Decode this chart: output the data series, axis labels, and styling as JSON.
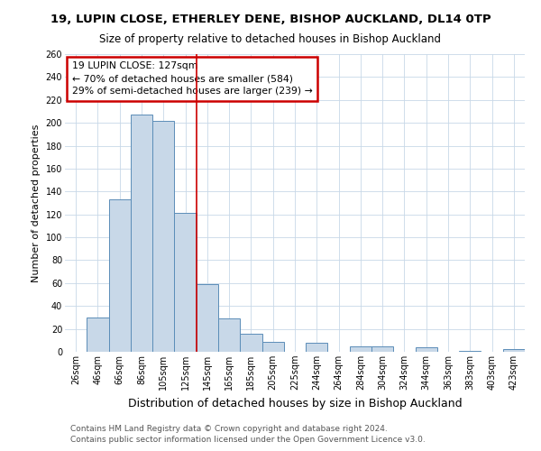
{
  "title": "19, LUPIN CLOSE, ETHERLEY DENE, BISHOP AUCKLAND, DL14 0TP",
  "subtitle": "Size of property relative to detached houses in Bishop Auckland",
  "xlabel": "Distribution of detached houses by size in Bishop Auckland",
  "ylabel": "Number of detached properties",
  "bin_labels": [
    "26sqm",
    "46sqm",
    "66sqm",
    "86sqm",
    "105sqm",
    "125sqm",
    "145sqm",
    "165sqm",
    "185sqm",
    "205sqm",
    "225sqm",
    "244sqm",
    "264sqm",
    "284sqm",
    "304sqm",
    "324sqm",
    "344sqm",
    "363sqm",
    "383sqm",
    "403sqm",
    "423sqm"
  ],
  "bar_heights": [
    0,
    30,
    133,
    207,
    202,
    121,
    59,
    29,
    16,
    9,
    0,
    8,
    0,
    5,
    5,
    0,
    4,
    0,
    1,
    0,
    2
  ],
  "bar_color": "#c8d8e8",
  "bar_edge_color": "#5b8db8",
  "vline_x_idx": 5,
  "vline_color": "#cc0000",
  "annotation_title": "19 LUPIN CLOSE: 127sqm",
  "annotation_line1": "← 70% of detached houses are smaller (584)",
  "annotation_line2": "29% of semi-detached houses are larger (239) →",
  "annotation_box_color": "#cc0000",
  "ylim": [
    0,
    260
  ],
  "yticks": [
    0,
    20,
    40,
    60,
    80,
    100,
    120,
    140,
    160,
    180,
    200,
    220,
    240,
    260
  ],
  "footer1": "Contains HM Land Registry data © Crown copyright and database right 2024.",
  "footer2": "Contains public sector information licensed under the Open Government Licence v3.0.",
  "bg_color": "#ffffff",
  "grid_color": "#c8d8e8",
  "title_fontsize": 9.5,
  "subtitle_fontsize": 8.5,
  "ylabel_fontsize": 8,
  "xlabel_fontsize": 9,
  "tick_fontsize": 7,
  "footer_fontsize": 6.5
}
